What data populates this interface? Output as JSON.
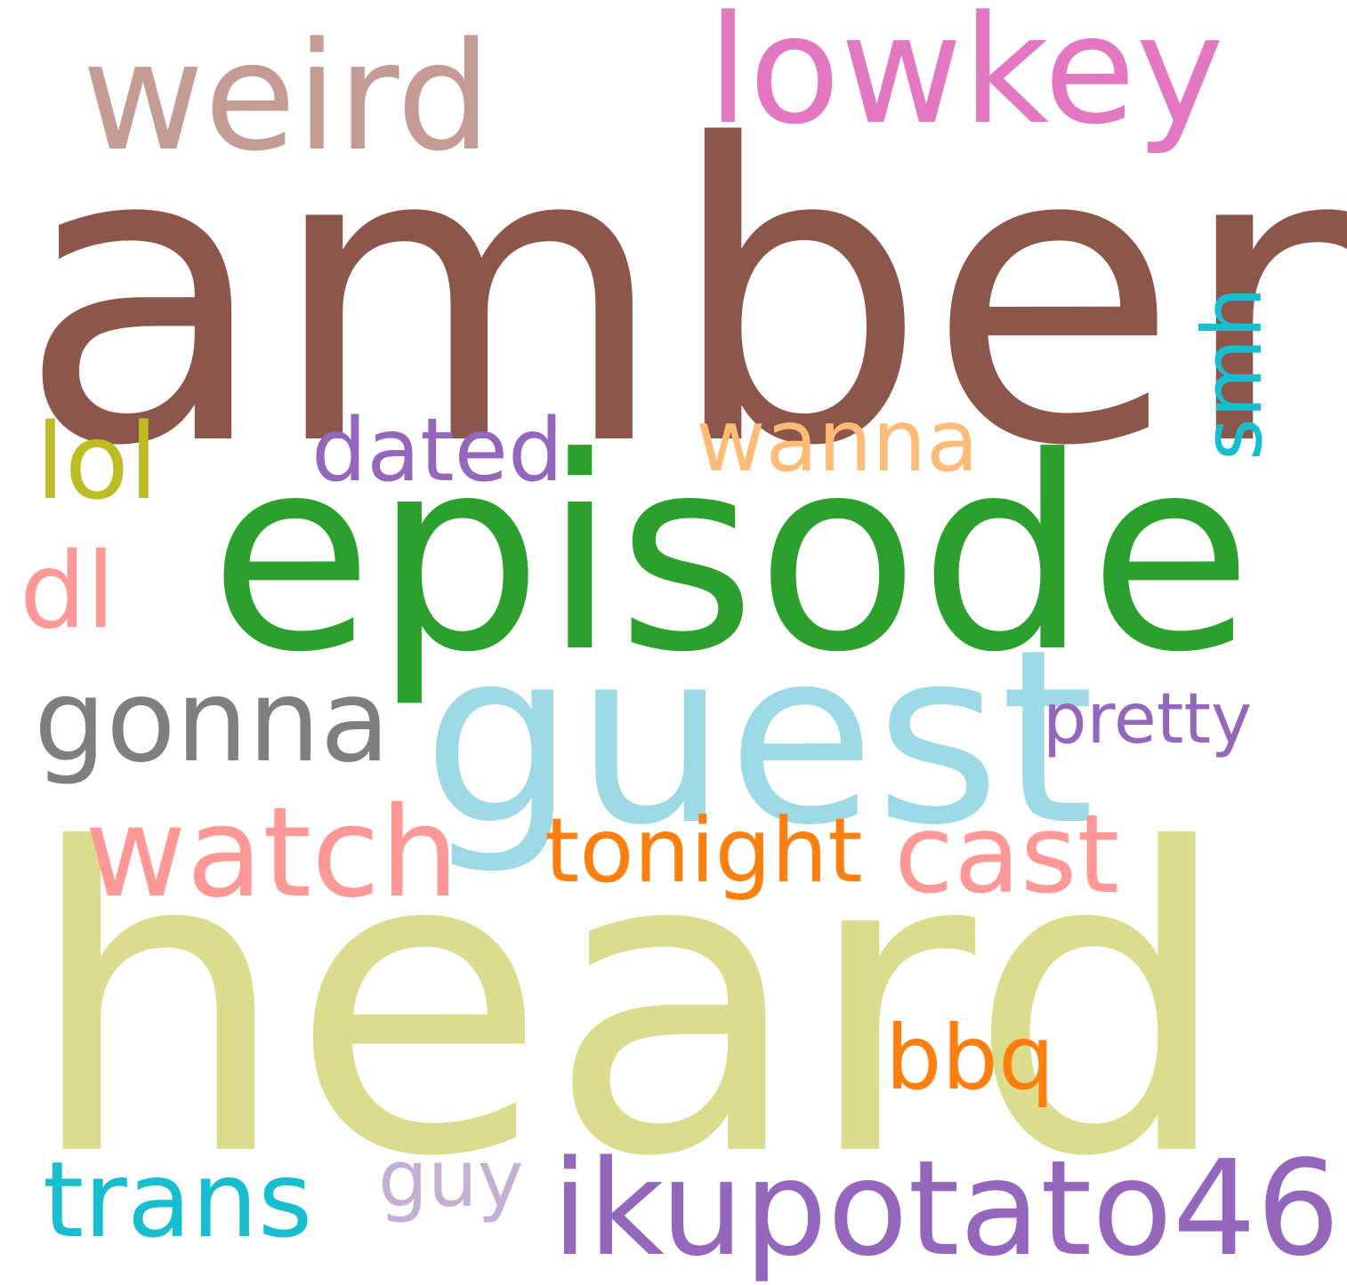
{
  "words": [
    {
      "id": "heard",
      "text": "heard",
      "color": "#dbdc8d",
      "vertical": false
    },
    {
      "id": "amber",
      "text": "amber",
      "color": "#8c564b",
      "vertical": false
    },
    {
      "id": "episode",
      "text": "episode",
      "color": "#2ca02c",
      "vertical": false
    },
    {
      "id": "guest",
      "text": "guest",
      "color": "#9edae5",
      "vertical": false
    },
    {
      "id": "lowkey",
      "text": "lowkey",
      "color": "#e377c2",
      "vertical": false
    },
    {
      "id": "weird",
      "text": "weird",
      "color": "#c49c94",
      "vertical": false
    },
    {
      "id": "ikupotato46",
      "text": "ikupotato46",
      "color": "#9467bd",
      "vertical": false
    },
    {
      "id": "watch",
      "text": "watch",
      "color": "#ff9896",
      "vertical": false
    },
    {
      "id": "cast",
      "text": "cast",
      "color": "#ff9896",
      "vertical": false
    },
    {
      "id": "tonight",
      "text": "tonight",
      "color": "#ff7f0e",
      "vertical": false
    },
    {
      "id": "gonna",
      "text": "gonna",
      "color": "#7f7f7f",
      "vertical": false
    },
    {
      "id": "trans",
      "text": "trans",
      "color": "#17becf",
      "vertical": false
    },
    {
      "id": "lol",
      "text": "lol",
      "color": "#bcbd22",
      "vertical": false
    },
    {
      "id": "dl",
      "text": "dl",
      "color": "#ff9896",
      "vertical": false
    },
    {
      "id": "dated",
      "text": "dated",
      "color": "#9467bd",
      "vertical": false
    },
    {
      "id": "wanna",
      "text": "wanna",
      "color": "#ffbb78",
      "vertical": false
    },
    {
      "id": "bbq",
      "text": "bbq",
      "color": "#ff7f0e",
      "vertical": false
    },
    {
      "id": "guy",
      "text": "guy",
      "color": "#c5b0d5",
      "vertical": false
    },
    {
      "id": "pretty",
      "text": "pretty",
      "color": "#9467bd",
      "vertical": false
    },
    {
      "id": "smh",
      "text": "smh",
      "color": "#17becf",
      "vertical": true
    }
  ]
}
